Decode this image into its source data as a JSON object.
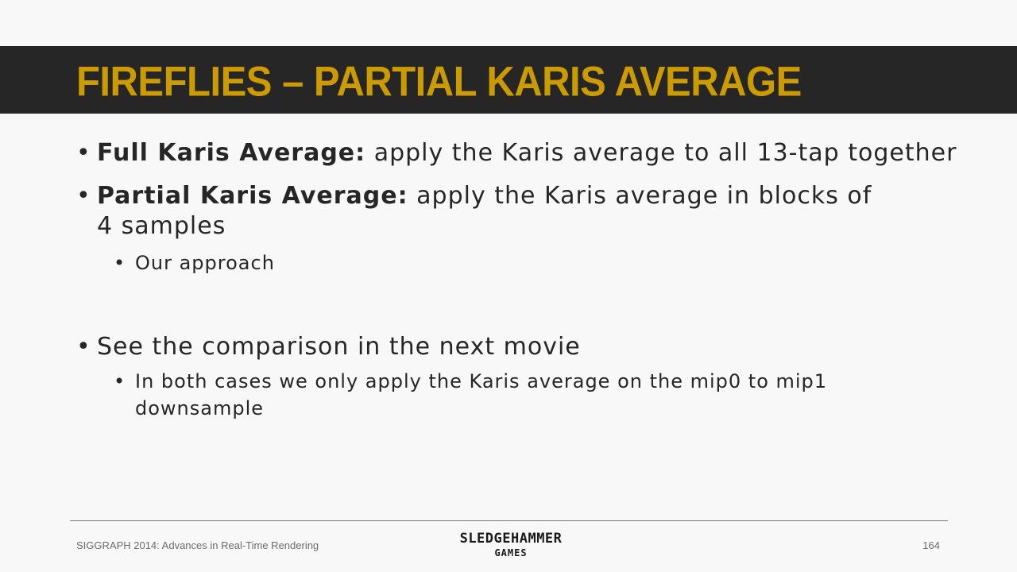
{
  "slide": {
    "title": "FIREFLIES – PARTIAL KARIS AVERAGE",
    "bullets": [
      {
        "bold": "Full Karis Average:",
        "text": " apply the Karis average to all 13-tap together"
      },
      {
        "bold": "Partial Karis Average:",
        "text": " apply the Karis average in blocks of 4 samples",
        "sub": [
          "Our approach"
        ]
      },
      {
        "text": "See the comparison in the next movie",
        "sub": [
          "In both cases we only apply the Karis average on the mip0 to mip1 downsample"
        ]
      }
    ],
    "bullet_glyph": "•"
  },
  "footer": {
    "conference": "SIGGRAPH 2014: Advances in Real-Time Rendering",
    "logo_line1": "SLEDGEHAMMER",
    "logo_line2": "GAMES",
    "page_number": "164"
  },
  "colors": {
    "title_bar": "#262626",
    "title_text": "#cc9b00",
    "background": "#f8f8f8",
    "body_text": "#262626"
  }
}
